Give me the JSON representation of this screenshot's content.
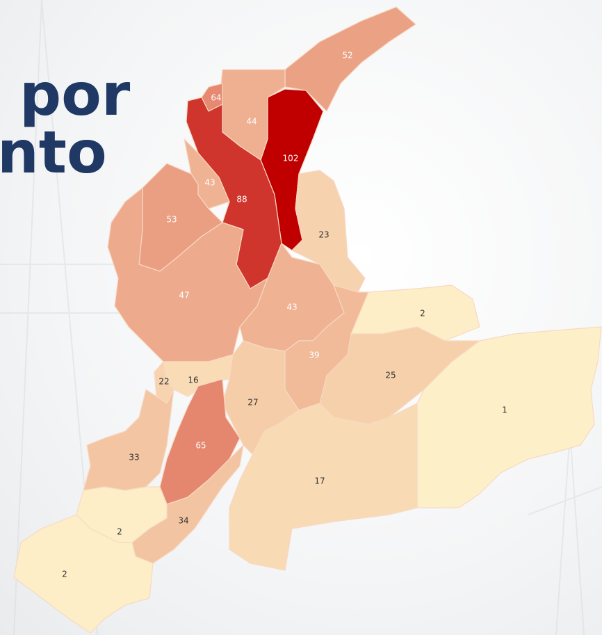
{
  "title_lines": [
    "por",
    "nto"
  ],
  "map": {
    "color_scale": [
      "#fdefc8",
      "#f3c3a0",
      "#e3806a",
      "#c00000"
    ],
    "regions": [
      {
        "value": 52
      },
      {
        "value": 102
      },
      {
        "value": 44
      },
      {
        "value": 64
      },
      {
        "value": 88
      },
      {
        "value": 43
      },
      {
        "value": 53
      },
      {
        "value": 47
      },
      {
        "value": 43
      },
      {
        "value": 23
      },
      {
        "value": 39
      },
      {
        "value": 2
      },
      {
        "value": 25
      },
      {
        "value": 1
      },
      {
        "value": 16
      },
      {
        "value": 22
      },
      {
        "value": 27
      },
      {
        "value": 33
      },
      {
        "value": 65
      },
      {
        "value": 34
      },
      {
        "value": 17
      },
      {
        "value": 2
      },
      {
        "value": 2
      }
    ]
  }
}
